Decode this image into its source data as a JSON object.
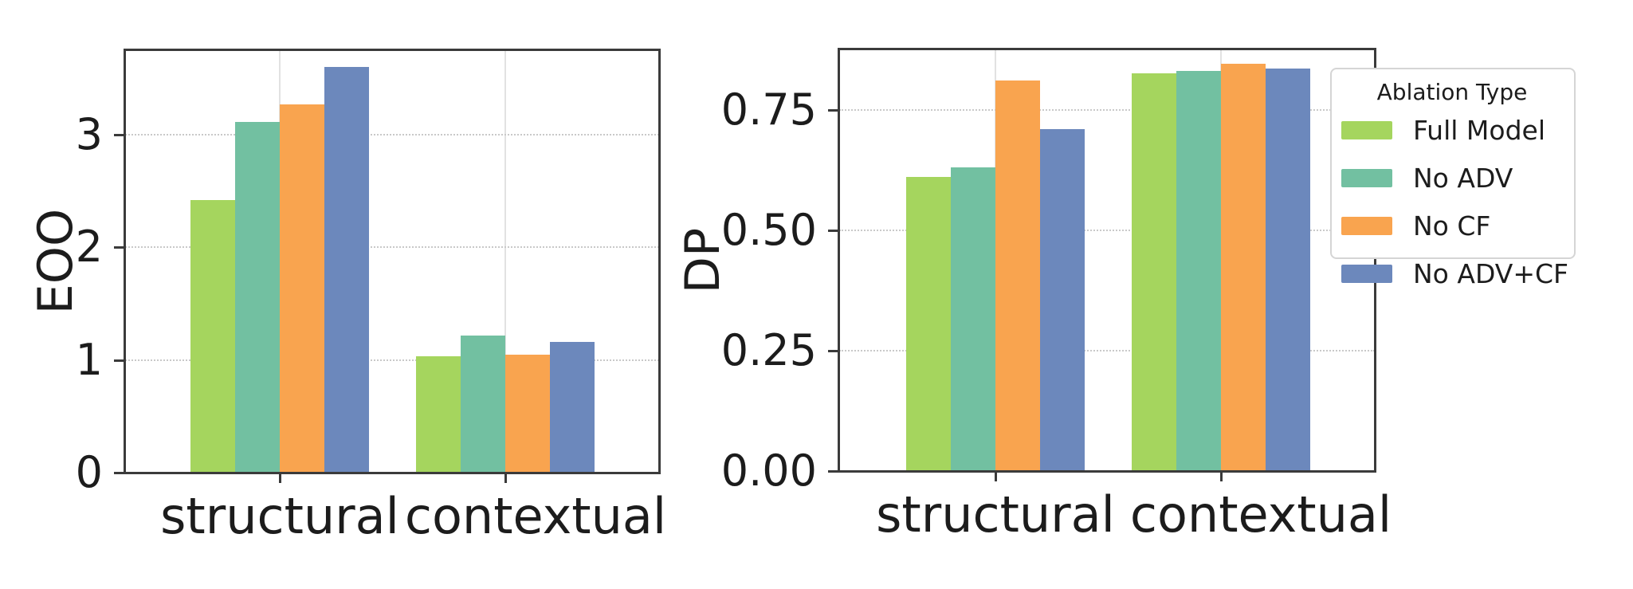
{
  "figure": {
    "background": "#ffffff",
    "text_color": "#1c1c1c",
    "spine_color": "#3b3b3b",
    "gridline_color": "#c9c9c9",
    "vertical_gridline_color": "#e2e2e2"
  },
  "legend": {
    "title": "Ablation Type",
    "position": "upper right, overlapping right edge of DP panel",
    "items": [
      {
        "label": "Full Model",
        "color": "#a5d55e"
      },
      {
        "label": "No ADV",
        "color": "#72c0a1"
      },
      {
        "label": "No CF",
        "color": "#f9a44f"
      },
      {
        "label": "No ADV+CF",
        "color": "#6c88bc"
      }
    ]
  },
  "chart_data": [
    {
      "type": "bar",
      "title": "",
      "xlabel": "",
      "ylabel": "EOO",
      "categories": [
        "structural",
        "contextual"
      ],
      "series": [
        {
          "name": "Full Model",
          "color": "#a5d55e",
          "values": [
            2.42,
            1.03
          ]
        },
        {
          "name": "No ADV",
          "color": "#72c0a1",
          "values": [
            3.11,
            1.22
          ]
        },
        {
          "name": "No CF",
          "color": "#f9a44f",
          "values": [
            3.27,
            1.05
          ]
        },
        {
          "name": "No ADV+CF",
          "color": "#6c88bc",
          "values": [
            3.6,
            1.16
          ]
        }
      ],
      "ylim": [
        0,
        3.75
      ],
      "yticks": [
        {
          "value": 0,
          "label": "0"
        },
        {
          "value": 1,
          "label": "1"
        },
        {
          "value": 2,
          "label": "2"
        },
        {
          "value": 3,
          "label": "3"
        }
      ],
      "grid": true,
      "legend_position": "none"
    },
    {
      "type": "bar",
      "title": "",
      "xlabel": "",
      "ylabel": "DP",
      "categories": [
        "structural",
        "contextual"
      ],
      "series": [
        {
          "name": "Full Model",
          "color": "#a5d55e",
          "values": [
            0.61,
            0.825
          ]
        },
        {
          "name": "No ADV",
          "color": "#72c0a1",
          "values": [
            0.63,
            0.83
          ]
        },
        {
          "name": "No CF",
          "color": "#f9a44f",
          "values": [
            0.81,
            0.845
          ]
        },
        {
          "name": "No ADV+CF",
          "color": "#6c88bc",
          "values": [
            0.71,
            0.835
          ]
        }
      ],
      "ylim": [
        0,
        0.875
      ],
      "yticks": [
        {
          "value": 0.0,
          "label": "0.00"
        },
        {
          "value": 0.25,
          "label": "0.25"
        },
        {
          "value": 0.5,
          "label": "0.50"
        },
        {
          "value": 0.75,
          "label": "0.75"
        }
      ],
      "grid": true,
      "legend_position": "upper right"
    }
  ]
}
